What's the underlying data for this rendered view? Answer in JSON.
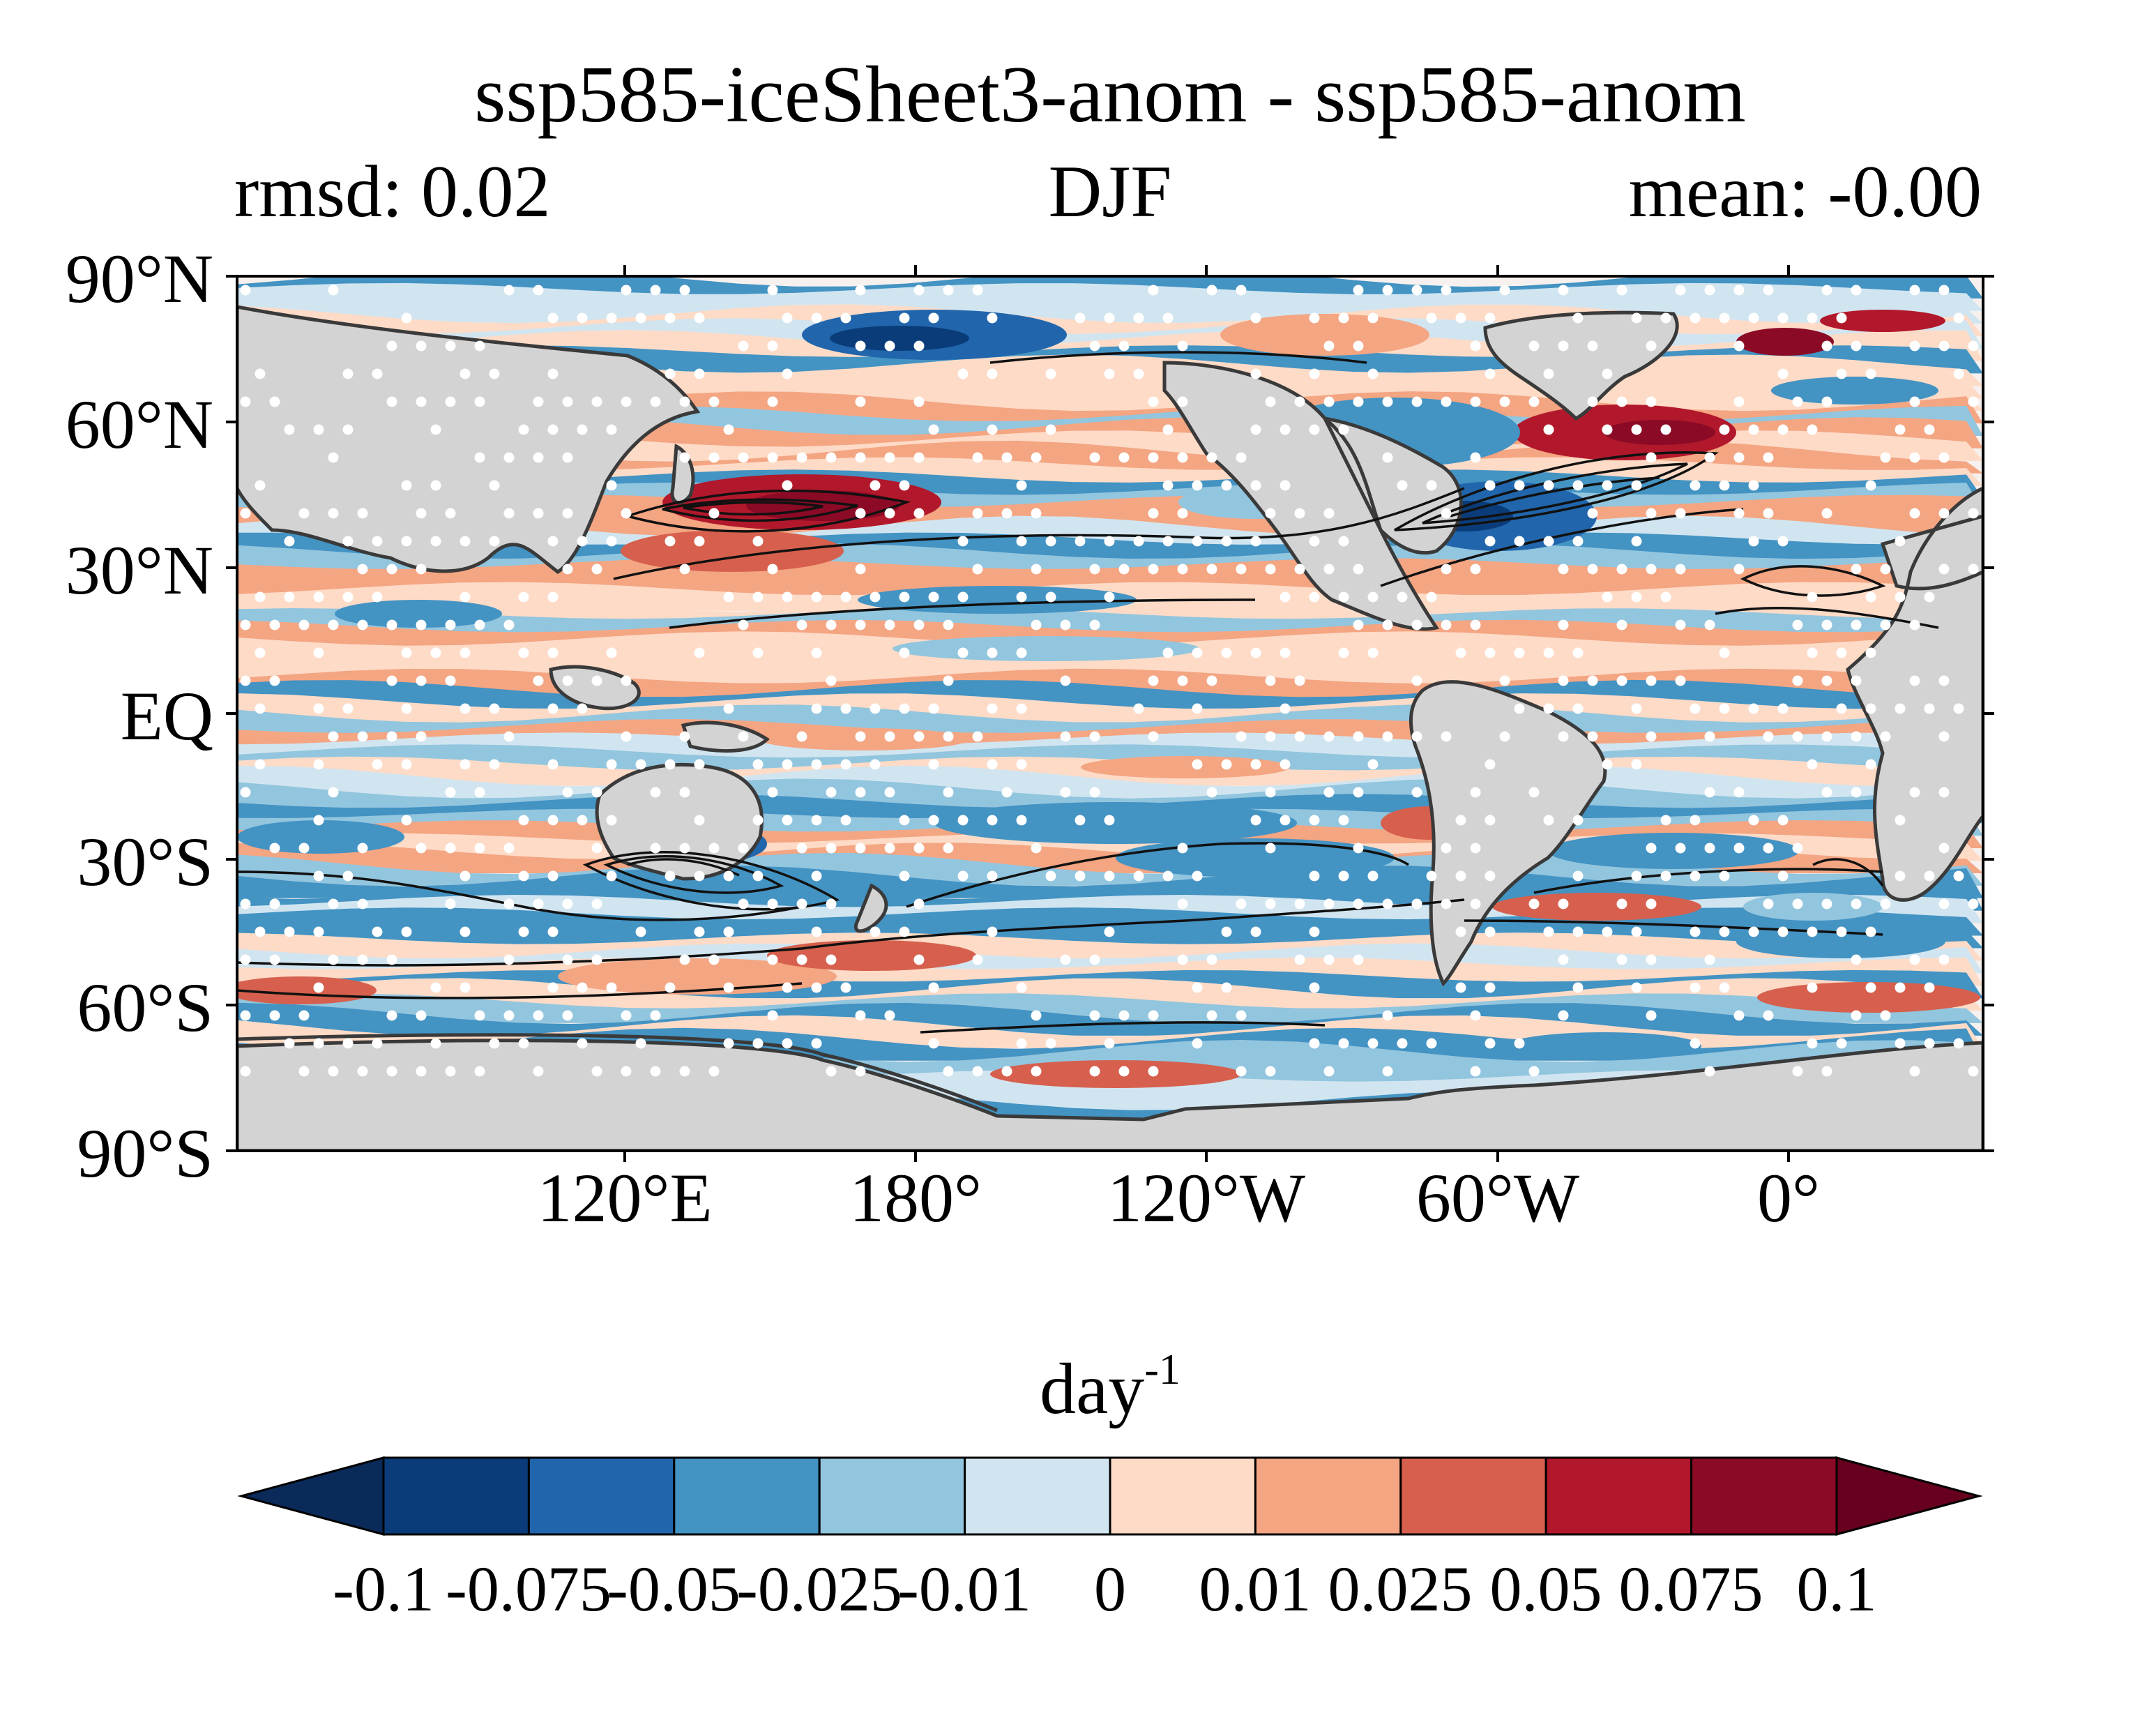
{
  "title": "ssp585-iceSheet3-anom - ssp585-anom",
  "subtitle_left": "rmsd: 0.02",
  "subtitle_center": "DJF",
  "subtitle_right": "mean: -0.00",
  "map": {
    "projection": "PlateCarree, central longitude 150°E",
    "lat_ticks": [
      "90°N",
      "60°N",
      "30°N",
      "EQ",
      "30°S",
      "60°S",
      "90°S"
    ],
    "lon_ticks": [
      "120°E",
      "180°",
      "120°W",
      "60°W",
      "0°"
    ],
    "land_color": "#d3d3d3",
    "stippling_color": "#ffffff",
    "contour_color": "#111111"
  },
  "colorbar": {
    "units_base": "day",
    "units_exponent": "-1",
    "extend": "both",
    "levels": [
      "-0.1",
      "-0.075",
      "-0.05",
      "-0.025",
      "-0.01",
      "0",
      "0.01",
      "0.025",
      "0.05",
      "0.075",
      "0.1"
    ],
    "colors": [
      "#0a2a59",
      "#0b3c7a",
      "#2166ac",
      "#4393c3",
      "#92c5de",
      "#d1e5f0",
      "#fddbc7",
      "#f4a582",
      "#d6604d",
      "#b2182b",
      "#8b0a25",
      "#67001f"
    ]
  }
}
